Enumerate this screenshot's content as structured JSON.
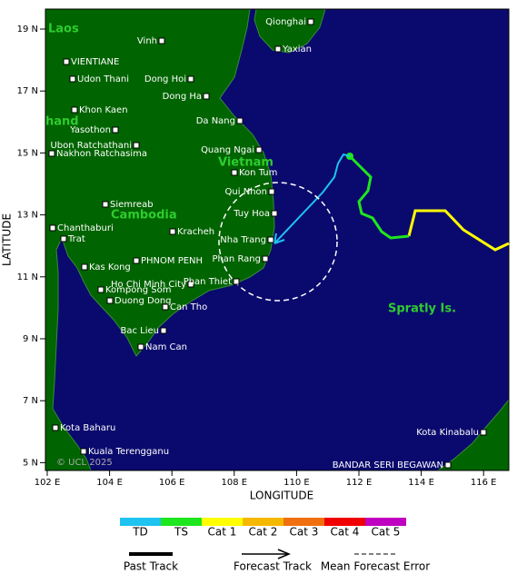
{
  "map": {
    "country_labels": [
      "Laos",
      "hand",
      "Vietnam",
      "Cambodia",
      "Spratly Is."
    ],
    "cities": [
      "Qionghai",
      "Yaxian",
      "Vinh",
      "VIENTIANE",
      "Udon Thani",
      "Dong Hoi",
      "Dong Ha",
      "Khon Kaen",
      "Da Nang",
      "Yasothon",
      "Ubon Ratchathani",
      "Nakhon Ratchasima",
      "Quang Ngai",
      "Kon Tum",
      "Qui Nhon",
      "Siemreab",
      "Tuy Hoa",
      "Chanthaburi",
      "Kracheh",
      "Trat",
      "Nha Trang",
      "PHNOM PENH",
      "Phan Rang",
      "Kas Kong",
      "Ho Chi Minh City",
      "Phan Thiet",
      "Kompong Som",
      "Duong Dong",
      "Can Tho",
      "Bac Lieu",
      "Nam Can",
      "Kota Baharu",
      "Kuala Terengganu",
      "Kota Kinabalu",
      "BANDAR SERI BEGAWAN"
    ],
    "lat_ticks": [
      "19 N",
      "17 N",
      "15 N",
      "13 N",
      "11 N",
      "9 N",
      "7 N",
      "5 N"
    ],
    "lon_ticks": [
      "102 E",
      "104 E",
      "106 E",
      "108 E",
      "110 E",
      "112 E",
      "114 E",
      "116 E"
    ],
    "x_axis_label": "LONGITUDE",
    "y_axis_label": "LATITUDE",
    "copyright": "© UCL 2025"
  },
  "legend": {
    "categories": [
      {
        "label": "TD",
        "color": "#1ec3f0"
      },
      {
        "label": "TS",
        "color": "#1ee61e"
      },
      {
        "label": "Cat 1",
        "color": "#ffff00"
      },
      {
        "label": "Cat 2",
        "color": "#f5b800"
      },
      {
        "label": "Cat 3",
        "color": "#f07010"
      },
      {
        "label": "Cat 4",
        "color": "#f00000"
      },
      {
        "label": "Cat 5",
        "color": "#c000c0"
      }
    ],
    "tracks": [
      "Past Track",
      "Forecast Track",
      "Mean Forecast Error"
    ]
  }
}
